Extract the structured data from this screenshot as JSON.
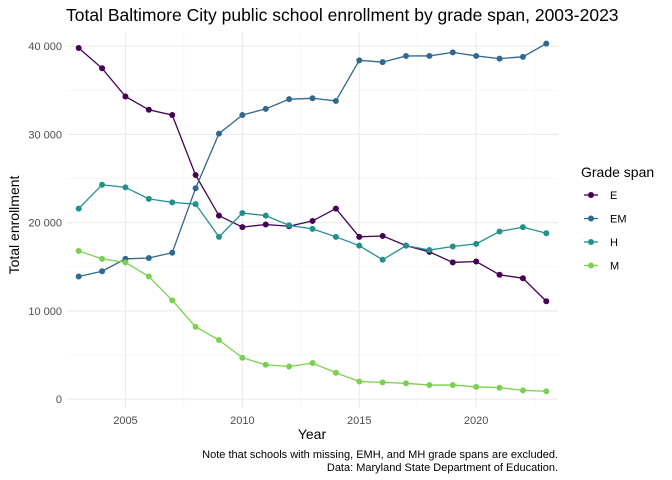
{
  "chart_data": {
    "type": "line",
    "title": "Total Baltimore City public school enrollment by grade span, 2003-2023",
    "xlabel": "Year",
    "ylabel": "Total enrollment",
    "xlim": [
      2002.5,
      2023.5
    ],
    "ylim": [
      -1000,
      41500
    ],
    "x_ticks": [
      2005,
      2010,
      2015,
      2020
    ],
    "x_tick_labels": [
      "2005",
      "2010",
      "2015",
      "2020"
    ],
    "y_ticks": [
      0,
      10000,
      20000,
      30000,
      40000
    ],
    "y_tick_labels": [
      "0",
      "10 000",
      "20 000",
      "30 000",
      "40 000"
    ],
    "grid": true,
    "legend": {
      "title": "Grade span",
      "placement": "right"
    },
    "x": [
      2003,
      2004,
      2005,
      2006,
      2007,
      2008,
      2009,
      2010,
      2011,
      2012,
      2013,
      2014,
      2015,
      2016,
      2017,
      2018,
      2019,
      2020,
      2021,
      2022,
      2023
    ],
    "series": [
      {
        "name": "E",
        "color": "#440154",
        "values": [
          39800,
          37500,
          34300,
          32800,
          32200,
          25400,
          20800,
          19500,
          19800,
          19600,
          20200,
          21600,
          18400,
          18500,
          17400,
          16700,
          15500,
          15600,
          14100,
          13700,
          11100
        ]
      },
      {
        "name": "EM",
        "color": "#31688e",
        "values": [
          13900,
          14500,
          15900,
          16000,
          16600,
          23900,
          30100,
          32200,
          32900,
          34000,
          34100,
          33800,
          38400,
          38200,
          38900,
          38900,
          39300,
          38900,
          38600,
          38800,
          40300
        ]
      },
      {
        "name": "H",
        "color": "#21918c",
        "values": [
          21600,
          24300,
          24000,
          22700,
          22300,
          22100,
          18400,
          21100,
          20800,
          19700,
          19300,
          18400,
          17400,
          15800,
          17400,
          16900,
          17300,
          17600,
          19000,
          19500,
          18800
        ]
      },
      {
        "name": "M",
        "color": "#7ad151",
        "values": [
          16800,
          15900,
          15500,
          13900,
          11200,
          8200,
          6700,
          4700,
          3900,
          3700,
          4100,
          3000,
          2000,
          1900,
          1800,
          1600,
          1600,
          1400,
          1300,
          1000,
          900
        ]
      }
    ]
  },
  "caption": {
    "line1": "Note that schools with missing, EMH, and MH grade spans are excluded.",
    "line2": "Data: Maryland State Department of Education."
  }
}
